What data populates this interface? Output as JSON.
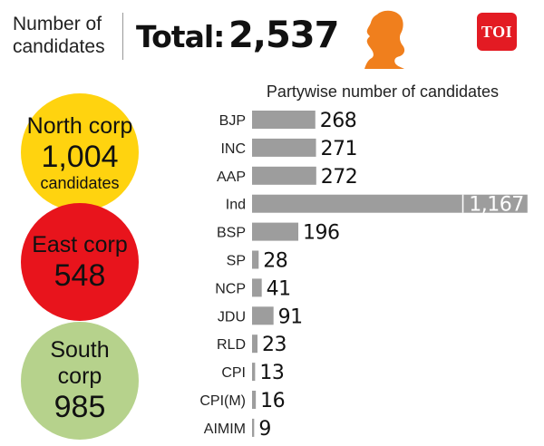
{
  "header": {
    "label": "Number of candidates",
    "total_label": "Total:",
    "total_value": "2,537",
    "logo_text": "TOI"
  },
  "corps": [
    {
      "name": "North corp",
      "value": "1,004",
      "unit": "candidates",
      "color": "#ffd30f"
    },
    {
      "name": "East corp",
      "value": "548",
      "unit": "",
      "color": "#e8141c"
    },
    {
      "name": "South corp",
      "value": "985",
      "unit": "",
      "color": "#b6d28c"
    }
  ],
  "colors": {
    "bar": "#9d9d9d",
    "silhouette": "#f07f1d",
    "logo": "#e31b23"
  },
  "chart_data": {
    "type": "bar",
    "orientation": "horizontal",
    "title": "Partywise number of candidates",
    "categories": [
      "BJP",
      "INC",
      "AAP",
      "Ind",
      "BSP",
      "SP",
      "NCP",
      "JDU",
      "RLD",
      "CPI",
      "CPI(M)",
      "AIMIM"
    ],
    "values": [
      268,
      271,
      272,
      1167,
      196,
      28,
      41,
      91,
      23,
      13,
      16,
      9
    ],
    "value_labels": [
      "268",
      "271",
      "272",
      "1,167",
      "196",
      "28",
      "41",
      "91",
      "23",
      "13",
      "16",
      "9"
    ],
    "xlabel": "",
    "ylabel": "",
    "grid": false,
    "legend": "none"
  }
}
